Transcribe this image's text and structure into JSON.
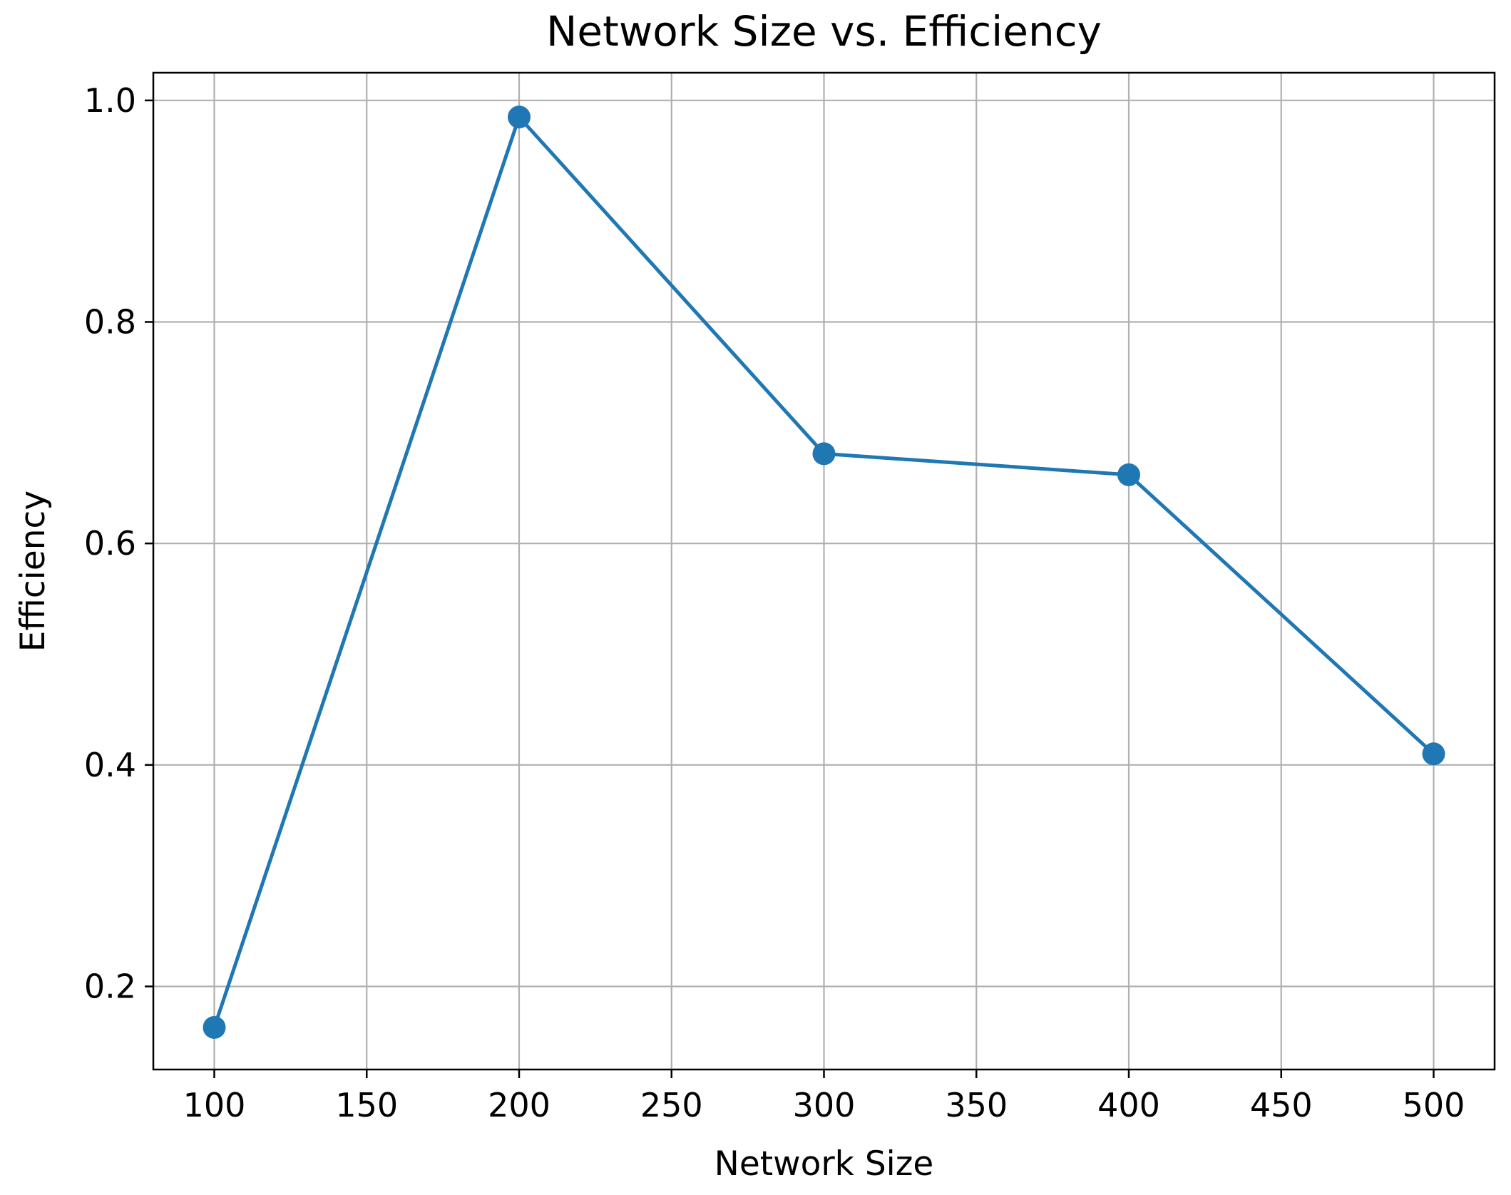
{
  "chart_data": {
    "type": "line",
    "title": "Network Size vs. Efficiency",
    "xlabel": "Network Size",
    "ylabel": "Efficiency",
    "x": [
      100,
      200,
      300,
      400,
      500
    ],
    "series": [
      {
        "values": [
          0.163,
          0.985,
          0.681,
          0.662,
          0.41
        ]
      }
    ],
    "xlim": [
      80,
      520
    ],
    "ylim": [
      0.125,
      1.025
    ],
    "xticks": [
      "100",
      "150",
      "200",
      "250",
      "300",
      "350",
      "400",
      "450",
      "500"
    ],
    "xtick_values": [
      100,
      150,
      200,
      250,
      300,
      350,
      400,
      450,
      500
    ],
    "yticks": [
      "0.2",
      "0.4",
      "0.6",
      "0.8",
      "1.0"
    ],
    "ytick_values": [
      0.2,
      0.4,
      0.6,
      0.8,
      1.0
    ],
    "grid": true,
    "color": "#1f77b4"
  }
}
